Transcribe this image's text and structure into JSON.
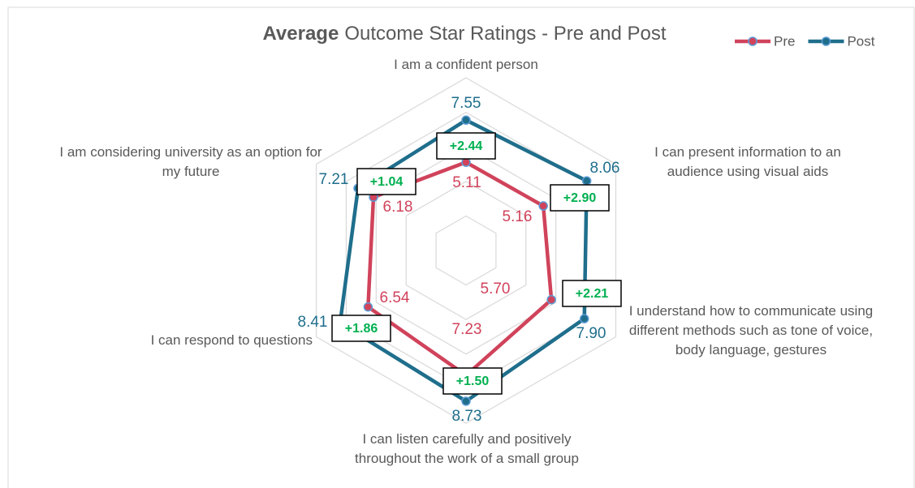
{
  "chart_data": {
    "type": "radar",
    "title": {
      "bold": "Average",
      "rest": "Outcome Star Ratings - Pre and Post"
    },
    "categories": [
      "I am a confident person",
      "I can present information to an audience using visual aids",
      "I understand how to communicate using different methods such as tone of voice, body language, gestures",
      "I can listen carefully and positively throughout the work of a small group",
      "I can respond to questions",
      "I am considering university as an option for my future"
    ],
    "series": [
      {
        "name": "Pre",
        "color": "#d0435b",
        "values": [
          5.11,
          5.16,
          5.7,
          7.23,
          6.54,
          6.18
        ],
        "value_labels": [
          "5.11",
          "5.16",
          "5.70",
          "7.23",
          "6.54",
          "6.18"
        ]
      },
      {
        "name": "Post",
        "color": "#1f6e8c",
        "values": [
          7.55,
          8.06,
          7.9,
          8.73,
          8.41,
          7.21
        ],
        "value_labels": [
          "7.55",
          "8.06",
          "7.90",
          "8.73",
          "8.41",
          "7.21"
        ]
      }
    ],
    "annotations": [
      "+2.44",
      "+2.90",
      "+2.21",
      "+1.50",
      "+1.86",
      "+1.04"
    ],
    "rlim": [
      0,
      10
    ],
    "rticks": [
      2,
      4,
      6,
      8,
      10
    ],
    "grid": true,
    "legend": "top-right"
  }
}
